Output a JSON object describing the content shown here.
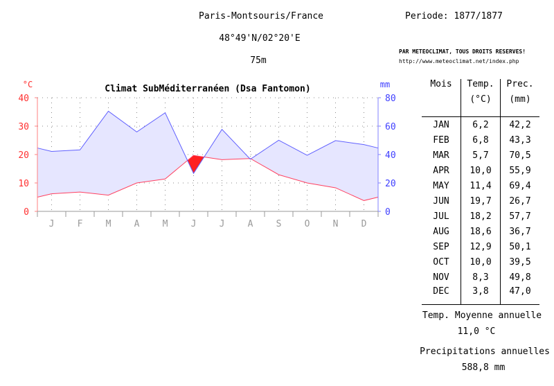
{
  "header": {
    "station": "Paris-Montsouris/France",
    "period": "Periode: 1877/1877",
    "coords": "48°49'N/02°20'E",
    "altitude": "75m",
    "copyright": "PAR METEOCLIMAT, TOUS DROITS RESERVES!",
    "url": "http://www.meteoclimat.net/index.php"
  },
  "table": {
    "col_month": "Mois",
    "col_temp": "Temp.",
    "col_temp_unit": "(°C)",
    "col_prec": "Prec.",
    "col_prec_unit": "(mm)",
    "rows": [
      {
        "month": "JAN",
        "temp": "6,2",
        "prec": "42,2"
      },
      {
        "month": "FEB",
        "temp": "6,8",
        "prec": "43,3"
      },
      {
        "month": "MAR",
        "temp": "5,7",
        "prec": "70,5"
      },
      {
        "month": "APR",
        "temp": "10,0",
        "prec": "55,9"
      },
      {
        "month": "MAY",
        "temp": "11,4",
        "prec": "69,4"
      },
      {
        "month": "JUN",
        "temp": "19,7",
        "prec": "26,7"
      },
      {
        "month": "JUL",
        "temp": "18,2",
        "prec": "57,7"
      },
      {
        "month": "AUG",
        "temp": "18,6",
        "prec": "36,7"
      },
      {
        "month": "SEP",
        "temp": "12,9",
        "prec": "50,1"
      },
      {
        "month": "OCT",
        "temp": "10,0",
        "prec": "39,5"
      },
      {
        "month": "NOV",
        "temp": "8,3",
        "prec": "49,8"
      },
      {
        "month": "DEC",
        "temp": "3,8",
        "prec": "47,0"
      }
    ]
  },
  "summary": {
    "temp_label": "Temp. Moyenne annuelle",
    "temp_value": "11,0 °C",
    "prec_label": "Precipitations annuelles",
    "prec_value": "588,8 mm"
  },
  "chart_data": {
    "type": "area",
    "title": "Climat SubMéditerranéen (Dsa Fantomon)",
    "categories": [
      "J",
      "F",
      "M",
      "A",
      "M",
      "J",
      "J",
      "A",
      "S",
      "O",
      "N",
      "D"
    ],
    "y_left": {
      "label": "°C",
      "range": [
        0,
        40
      ],
      "ticks": [
        0,
        10,
        20,
        30,
        40
      ],
      "color": "#ff0000"
    },
    "y_right": {
      "label": "mm",
      "range": [
        0,
        80
      ],
      "ticks": [
        0,
        20,
        40,
        60,
        80
      ],
      "color": "#0000ff"
    },
    "grid": true,
    "series": [
      {
        "axis": "left",
        "values": [
          6.2,
          6.8,
          5.7,
          10.0,
          11.4,
          19.7,
          18.2,
          18.6,
          12.9,
          10.0,
          8.3,
          3.8
        ],
        "color": "#ff0000"
      },
      {
        "axis": "right",
        "values": [
          42.2,
          43.3,
          70.5,
          55.9,
          69.4,
          26.7,
          57.7,
          36.7,
          50.1,
          39.5,
          49.8,
          47.0
        ],
        "color": "#0000ff"
      }
    ],
    "fill_colors": {
      "humid": "#e6e6ff",
      "dry": "#ff2020"
    }
  }
}
